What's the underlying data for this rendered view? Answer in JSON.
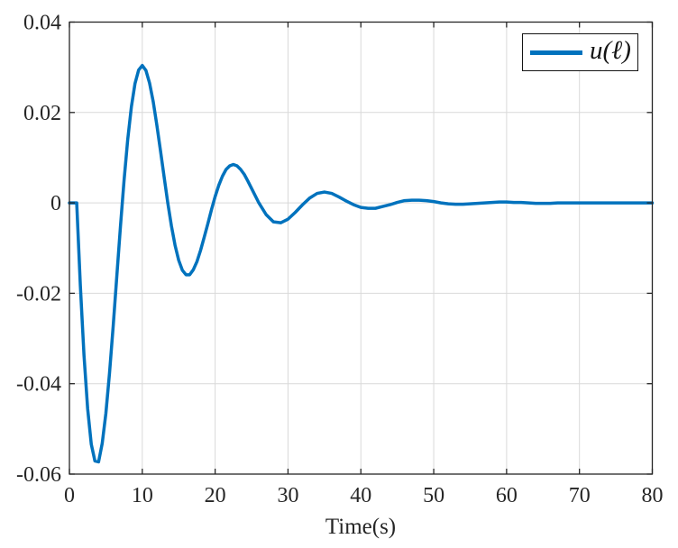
{
  "figure": {
    "background": "#ffffff"
  },
  "chart_data": {
    "type": "line",
    "title": "",
    "xlabel": "Time(s)",
    "ylabel": "",
    "xlim": [
      0,
      80
    ],
    "ylim": [
      -0.06,
      0.04
    ],
    "x_ticks": [
      0,
      10,
      20,
      30,
      40,
      50,
      60,
      70,
      80
    ],
    "x_tick_labels": [
      "0",
      "10",
      "20",
      "30",
      "40",
      "50",
      "60",
      "70",
      "80"
    ],
    "y_ticks": [
      -0.06,
      -0.04,
      -0.02,
      0,
      0.02,
      0.04
    ],
    "y_tick_labels": [
      "-0.06",
      "-0.04",
      "-0.02",
      "0",
      "0.02",
      "0.04"
    ],
    "grid": true,
    "grid_color": "#d9d9d9",
    "axis_color": "#262626",
    "legend": {
      "position": "northeast",
      "entries": [
        {
          "label": "u(ℓ)",
          "color": "#0072BD"
        }
      ]
    },
    "series": [
      {
        "name": "u(ℓ)",
        "color": "#0072BD",
        "line_width": 3.5,
        "points": [
          [
            0,
            0
          ],
          [
            1,
            0
          ],
          [
            1.5,
            -0.0183
          ],
          [
            2,
            -0.0337
          ],
          [
            2.5,
            -0.0455
          ],
          [
            3,
            -0.0534
          ],
          [
            3.5,
            -0.0571
          ],
          [
            4,
            -0.0573
          ],
          [
            4.5,
            -0.0532
          ],
          [
            5,
            -0.0466
          ],
          [
            5.5,
            -0.0377
          ],
          [
            6,
            -0.0274
          ],
          [
            6.5,
            -0.0163
          ],
          [
            7,
            -0.0053
          ],
          [
            7.5,
            0.005
          ],
          [
            8,
            0.014
          ],
          [
            8.5,
            0.0212
          ],
          [
            9,
            0.0264
          ],
          [
            9.5,
            0.0294
          ],
          [
            10,
            0.0304
          ],
          [
            10.5,
            0.0293
          ],
          [
            11,
            0.0265
          ],
          [
            11.5,
            0.0224
          ],
          [
            12,
            0.0172
          ],
          [
            12.5,
            0.0115
          ],
          [
            13,
            0.0057
          ],
          [
            13.5,
            0
          ],
          [
            14,
            -0.0051
          ],
          [
            14.5,
            -0.0094
          ],
          [
            15,
            -0.0127
          ],
          [
            15.5,
            -0.0149
          ],
          [
            16,
            -0.0159
          ],
          [
            16.5,
            -0.0159
          ],
          [
            17,
            -0.0148
          ],
          [
            17.5,
            -0.013
          ],
          [
            18,
            -0.0105
          ],
          [
            18.5,
            -0.0076
          ],
          [
            19,
            -0.0046
          ],
          [
            19.5,
            -0.0015
          ],
          [
            20,
            0.0014
          ],
          [
            20.5,
            0.0039
          ],
          [
            21,
            0.0059
          ],
          [
            21.5,
            0.0074
          ],
          [
            22,
            0.0082
          ],
          [
            22.5,
            0.0085
          ],
          [
            23,
            0.0082
          ],
          [
            23.5,
            0.0074
          ],
          [
            24,
            0.0063
          ],
          [
            24.5,
            0.0048
          ],
          [
            25,
            0.0032
          ],
          [
            26,
            0
          ],
          [
            27,
            -0.0026
          ],
          [
            28,
            -0.0042
          ],
          [
            29,
            -0.0044
          ],
          [
            30,
            -0.0036
          ],
          [
            31,
            -0.0021
          ],
          [
            32,
            -0.0004
          ],
          [
            33,
            0.0011
          ],
          [
            34,
            0.0021
          ],
          [
            35,
            0.0024
          ],
          [
            36,
            0.0021
          ],
          [
            37,
            0.0013
          ],
          [
            38,
            0.0004
          ],
          [
            39,
            -0.0004
          ],
          [
            40,
            -0.001
          ],
          [
            41,
            -0.0012
          ],
          [
            42,
            -0.0012
          ],
          [
            43,
            -0.0008
          ],
          [
            44,
            -0.0004
          ],
          [
            45,
            0.0001
          ],
          [
            46,
            0.0005
          ],
          [
            47,
            0.0006
          ],
          [
            48,
            0.0006
          ],
          [
            49,
            0.0005
          ],
          [
            50,
            0.0003
          ],
          [
            51,
            0
          ],
          [
            52,
            -0.0002
          ],
          [
            53,
            -0.0003
          ],
          [
            54,
            -0.0003
          ],
          [
            55,
            -0.0002
          ],
          [
            56,
            -0.0001
          ],
          [
            57,
            0
          ],
          [
            58,
            0.0001
          ],
          [
            59,
            0.0002
          ],
          [
            60,
            0.0002
          ],
          [
            61,
            0.0001
          ],
          [
            62,
            0.0001
          ],
          [
            63,
            0
          ],
          [
            64,
            -0.0001
          ],
          [
            65,
            -0.0001
          ],
          [
            66,
            -0.0001
          ],
          [
            67,
            0
          ],
          [
            68,
            0
          ],
          [
            70,
            0
          ],
          [
            72,
            0
          ],
          [
            74,
            0
          ],
          [
            76,
            0
          ],
          [
            78,
            0
          ],
          [
            80,
            0
          ]
        ]
      }
    ]
  }
}
